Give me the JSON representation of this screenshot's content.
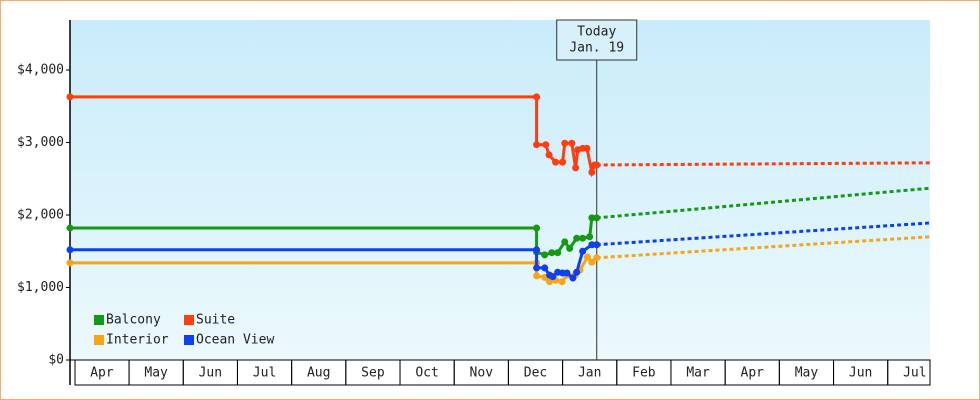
{
  "chart_data": {
    "type": "line",
    "xlim": [
      -0.09,
      15.78
    ],
    "xticks": [
      {
        "value": 0.5,
        "label": "Apr"
      },
      {
        "value": 1.5,
        "label": "May"
      },
      {
        "value": 2.5,
        "label": "Jun"
      },
      {
        "value": 3.5,
        "label": "Jul"
      },
      {
        "value": 4.5,
        "label": "Aug"
      },
      {
        "value": 5.5,
        "label": "Sep"
      },
      {
        "value": 6.5,
        "label": "Oct"
      },
      {
        "value": 7.5,
        "label": "Nov"
      },
      {
        "value": 8.5,
        "label": "Dec"
      },
      {
        "value": 9.5,
        "label": "Jan"
      },
      {
        "value": 10.5,
        "label": "Feb"
      },
      {
        "value": 11.5,
        "label": "Mar"
      },
      {
        "value": 12.5,
        "label": "Apr"
      },
      {
        "value": 13.5,
        "label": "May"
      },
      {
        "value": 14.5,
        "label": "Jun"
      },
      {
        "value": 15.5,
        "label": "Jul"
      }
    ],
    "ylim": [
      0,
      4690
    ],
    "yticks": [
      {
        "value": 0,
        "label": "$0"
      },
      {
        "value": 1000,
        "label": "$1,000"
      },
      {
        "value": 2000,
        "label": "$2,000"
      },
      {
        "value": 3000,
        "label": "$3,000"
      },
      {
        "value": 4000,
        "label": "$4,000"
      }
    ],
    "annotations": [
      {
        "x": 9.63,
        "lines": [
          "Today",
          "Jan. 19"
        ]
      }
    ],
    "legend": "lower left",
    "series": [
      {
        "name": "Balcony",
        "color": "#139a13",
        "x": [
          -0.09,
          8.52,
          8.52,
          8.67,
          8.8,
          8.91,
          9.04,
          9.13,
          9.26,
          9.37,
          9.5,
          9.54,
          9.63
        ],
        "values": [
          1820,
          1820,
          1490,
          1450,
          1480,
          1480,
          1630,
          1540,
          1680,
          1680,
          1700,
          1960,
          1960
        ],
        "forecast": {
          "x": [
            9.63,
            15.78
          ],
          "values": [
            1960,
            2370
          ]
        }
      },
      {
        "name": "Suite",
        "color": "#ff3d0f",
        "x": [
          -0.09,
          8.52,
          8.52,
          8.69,
          8.75,
          8.87,
          9.0,
          9.04,
          9.17,
          9.24,
          9.28,
          9.37,
          9.45,
          9.54,
          9.59,
          9.63
        ],
        "values": [
          3630,
          3630,
          2970,
          2970,
          2830,
          2730,
          2730,
          2990,
          2990,
          2650,
          2900,
          2920,
          2920,
          2590,
          2690,
          2690
        ],
        "forecast": {
          "x": [
            9.63,
            15.78
          ],
          "values": [
            2690,
            2720
          ]
        }
      },
      {
        "name": "Interior",
        "color": "#f7a417",
        "x": [
          -0.09,
          8.52,
          8.52,
          8.67,
          8.76,
          8.87,
          8.99,
          9.08,
          9.23,
          9.32,
          9.46,
          9.54,
          9.63
        ],
        "values": [
          1340,
          1340,
          1160,
          1140,
          1080,
          1100,
          1080,
          1170,
          1170,
          1240,
          1420,
          1350,
          1410
        ],
        "forecast": {
          "x": [
            9.63,
            15.78
          ],
          "values": [
            1410,
            1700
          ]
        }
      },
      {
        "name": "Ocean View",
        "color": "#0f3ff0",
        "x": [
          -0.09,
          8.52,
          8.52,
          8.67,
          8.76,
          8.82,
          8.91,
          9.0,
          9.08,
          9.19,
          9.26,
          9.37,
          9.54,
          9.63
        ],
        "values": [
          1520,
          1520,
          1270,
          1270,
          1170,
          1150,
          1210,
          1200,
          1200,
          1130,
          1210,
          1500,
          1590,
          1590
        ],
        "forecast": {
          "x": [
            9.63,
            15.78
          ],
          "values": [
            1590,
            1890
          ]
        }
      }
    ]
  }
}
